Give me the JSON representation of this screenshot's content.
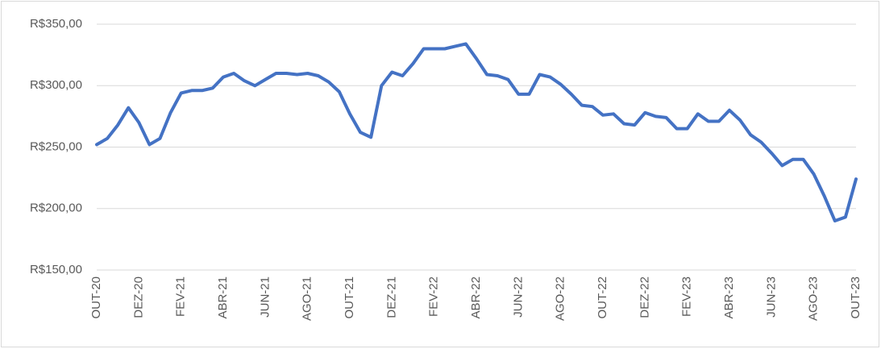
{
  "chart_data": {
    "type": "line",
    "categories": [
      "OUT-20",
      null,
      null,
      null,
      "DEZ-20",
      null,
      null,
      null,
      "FEV-21",
      null,
      null,
      null,
      "ABR-21",
      null,
      null,
      null,
      "JUN-21",
      null,
      null,
      null,
      "AGO-21",
      null,
      null,
      null,
      "OUT-21",
      null,
      null,
      null,
      "DEZ-21",
      null,
      null,
      null,
      "FEV-22",
      null,
      null,
      null,
      "ABR-22",
      null,
      null,
      null,
      "JUN-22",
      null,
      null,
      null,
      "AGO-22",
      null,
      null,
      null,
      "OUT-22",
      null,
      null,
      null,
      "DEZ-22",
      null,
      null,
      null,
      "FEV-23",
      null,
      null,
      null,
      "ABR-23",
      null,
      null,
      null,
      "JUN-23",
      null,
      null,
      null,
      "AGO-23",
      null,
      null,
      null,
      "OUT-23"
    ],
    "series": [
      {
        "color": "#4472c4",
        "values": [
          252,
          257,
          268,
          282,
          270,
          252,
          257,
          278,
          294,
          296,
          296,
          298,
          307,
          310,
          304,
          300,
          305,
          310,
          310,
          309,
          310,
          308,
          303,
          295,
          277,
          262,
          258,
          300,
          311,
          308,
          318,
          330,
          330,
          330,
          332,
          334,
          322,
          309,
          308,
          305,
          293,
          293,
          309,
          307,
          301,
          293,
          284,
          283,
          276,
          277,
          269,
          268,
          278,
          275,
          274,
          265,
          265,
          277,
          271,
          271,
          280,
          272,
          260,
          254,
          245,
          235,
          240,
          240,
          228,
          210,
          190,
          193,
          224
        ]
      }
    ],
    "ylim": [
      150,
      350
    ],
    "yticks": [
      {
        "value": 150,
        "label": "R$150,00"
      },
      {
        "value": 200,
        "label": "R$200,00"
      },
      {
        "value": 250,
        "label": "R$250,00"
      },
      {
        "value": 300,
        "label": "R$300,00"
      },
      {
        "value": 350,
        "label": "R$350,00"
      }
    ],
    "grid": true
  }
}
